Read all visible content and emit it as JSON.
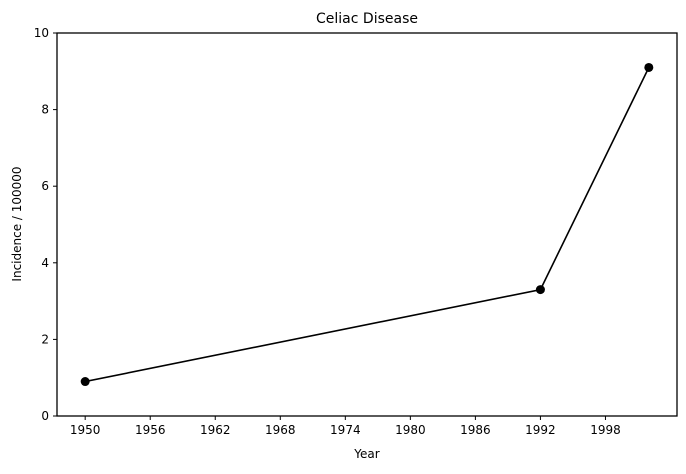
{
  "chart_data": {
    "type": "line",
    "title": "Celiac Disease",
    "xlabel": "Year",
    "ylabel": "Incidence / 100000",
    "x": [
      1950,
      1992,
      2002
    ],
    "series": [
      {
        "values": [
          0.9,
          3.3,
          9.1
        ]
      }
    ],
    "xlim": [
      1947.4,
      2004.6
    ],
    "ylim": [
      0,
      10
    ],
    "xticks": [
      1950,
      1956,
      1962,
      1968,
      1974,
      1980,
      1986,
      1992,
      1998
    ],
    "yticks": [
      0,
      2,
      4,
      6,
      8,
      10
    ],
    "grid": false,
    "line_color": "#000000",
    "marker": "circle"
  }
}
